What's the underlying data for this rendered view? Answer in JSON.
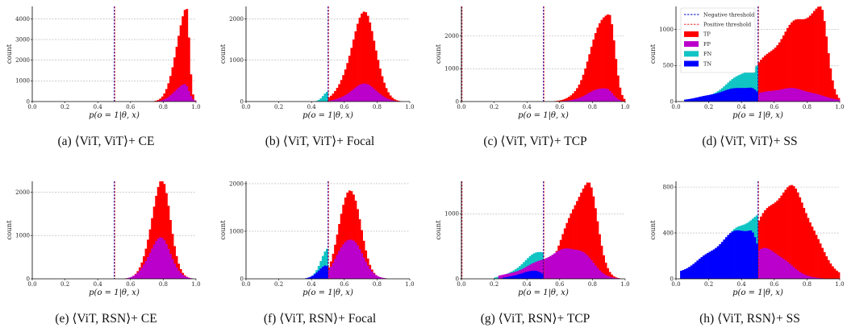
{
  "colors": {
    "TP": "#ff0000",
    "FP": "#bb00cc",
    "FN": "#11c4c4",
    "TN": "#0000ff",
    "neg_threshold": "#0000cc",
    "pos_threshold": "#e01010",
    "grid": "#b0b0b0"
  },
  "chart_data": [
    {
      "type": "histogram",
      "caption": "(a) ⟨ViT, ViT⟩+ CE",
      "xlabel": "p(o = 1|θ, x)",
      "ylabel": "count",
      "xlim": [
        0,
        1
      ],
      "ylim": [
        0,
        4600
      ],
      "yticks": [
        0,
        1000,
        2000,
        3000,
        4000
      ],
      "xticks": [
        "0.0",
        "0.2",
        "0.4",
        "0.6",
        "0.8",
        "1.0"
      ],
      "thresholds": [
        0.5
      ],
      "grid": true,
      "series": [
        {
          "class": "TP",
          "peak_x": 0.94,
          "peak": 4500,
          "width_left": 0.06,
          "width_right": 0.018,
          "start": 0.5
        },
        {
          "class": "FP",
          "peak_x": 0.93,
          "peak": 850,
          "width_left": 0.06,
          "width_right": 0.025,
          "start": 0.5
        }
      ]
    },
    {
      "type": "histogram",
      "caption": "(b) ⟨ViT, ViT⟩+ Focal",
      "xlabel": "p(o = 1|θ, x)",
      "ylabel": "count",
      "xlim": [
        0,
        1
      ],
      "ylim": [
        0,
        2300
      ],
      "yticks": [
        0,
        1000,
        2000
      ],
      "xticks": [
        "0.0",
        "0.2",
        "0.4",
        "0.6",
        "0.8",
        "1.0"
      ],
      "thresholds": [
        0.5
      ],
      "grid": true,
      "series": [
        {
          "class": "TP",
          "peak_x": 0.73,
          "peak": 2100,
          "width_left": 0.09,
          "width_right": 0.065,
          "start": 0.5
        },
        {
          "class": "FP",
          "peak_x": 0.73,
          "peak": 420,
          "width_left": 0.09,
          "width_right": 0.07,
          "start": 0.5
        },
        {
          "class": "FN",
          "peak_x": 0.5,
          "peak": 230,
          "width_left": 0.03,
          "width_right": 0.01,
          "start": 0.42,
          "end": 0.5
        }
      ]
    },
    {
      "type": "histogram",
      "caption": "(c) ⟨ViT, ViT⟩+ TCP",
      "xlabel": "p(o = 1|θ, x)",
      "ylabel": "count",
      "xlim": [
        0,
        1
      ],
      "ylim": [
        0,
        2900
      ],
      "yticks": [
        0,
        1000,
        2000
      ],
      "xticks": [
        "0.0",
        "0.2",
        "0.4",
        "0.6",
        "0.8",
        "1.0"
      ],
      "thresholds": [
        0.0,
        0.5
      ],
      "grid": true,
      "series": [
        {
          "class": "TP",
          "peak_x": 0.9,
          "peak": 2800,
          "width_left": 0.1,
          "width_right": 0.035,
          "start": 0.5
        },
        {
          "class": "FP",
          "peak_x": 0.88,
          "peak": 420,
          "width_left": 0.1,
          "width_right": 0.04,
          "start": 0.5
        }
      ]
    },
    {
      "type": "histogram",
      "caption": "(d) ⟨ViT, ViT⟩+ SS",
      "xlabel": "p(o = 1|θ, x)",
      "ylabel": "count",
      "xlim": [
        0,
        1
      ],
      "ylim": [
        0,
        1320
      ],
      "yticks": [
        0,
        500,
        1000
      ],
      "xticks": [
        "0.0",
        "0.2",
        "0.4",
        "0.6",
        "0.8",
        "1.0"
      ],
      "thresholds": [
        0.5
      ],
      "grid": true,
      "legend": {
        "placement": "top-left",
        "entries": [
          "Negative threshold",
          "Positive threshold",
          "TP",
          "FP",
          "FN",
          "TN"
        ]
      },
      "series": [
        {
          "class": "TP",
          "peak_x": 0.88,
          "peak": 1270,
          "width_left": 0.28,
          "width_right": 0.045,
          "start": 0.5
        },
        {
          "class": "FP",
          "peak_x": 0.7,
          "peak": 180,
          "width_left": 0.2,
          "width_right": 0.15,
          "start": 0.5
        },
        {
          "class": "FN",
          "peak_x": 0.5,
          "peak": 480,
          "width_left": 0.16,
          "width_right": 0.01,
          "start": 0.1,
          "end": 0.5
        },
        {
          "class": "TN",
          "peak_x": 0.45,
          "peak": 200,
          "width_left": 0.2,
          "width_right": 0.05,
          "start": 0.05,
          "end": 0.5
        }
      ]
    },
    {
      "type": "histogram",
      "caption": "(e) ⟨ViT, RSN⟩+ CE",
      "xlabel": "p(o = 1|θ, x)",
      "ylabel": "count",
      "xlim": [
        0,
        1
      ],
      "ylim": [
        0,
        2250
      ],
      "yticks": [
        0,
        1000,
        2000
      ],
      "xticks": [
        "0.0",
        "0.2",
        "0.4",
        "0.6",
        "0.8",
        "1.0"
      ],
      "thresholds": [
        0.5
      ],
      "grid": true,
      "series": [
        {
          "class": "TP",
          "peak_x": 0.79,
          "peak": 2180,
          "width_left": 0.065,
          "width_right": 0.055,
          "start": 0.5
        },
        {
          "class": "FP",
          "peak_x": 0.78,
          "peak": 920,
          "width_left": 0.07,
          "width_right": 0.065,
          "start": 0.5
        }
      ]
    },
    {
      "type": "histogram",
      "caption": "(f) ⟨ViT, RSN⟩+ Focal",
      "xlabel": "p(o = 1|θ, x)",
      "ylabel": "count",
      "xlim": [
        0,
        1
      ],
      "ylim": [
        0,
        2050
      ],
      "yticks": [
        0,
        1000,
        2000
      ],
      "xticks": [
        "0.0",
        "0.2",
        "0.4",
        "0.6",
        "0.8",
        "1.0"
      ],
      "thresholds": [
        0.5
      ],
      "grid": true,
      "series": [
        {
          "class": "TP",
          "peak_x": 0.63,
          "peak": 1940,
          "width_left": 0.06,
          "width_right": 0.065,
          "start": 0.5
        },
        {
          "class": "FP",
          "peak_x": 0.63,
          "peak": 860,
          "width_left": 0.07,
          "width_right": 0.075,
          "start": 0.5
        },
        {
          "class": "FN",
          "peak_x": 0.5,
          "peak": 620,
          "width_left": 0.045,
          "width_right": 0.01,
          "start": 0.35,
          "end": 0.5
        },
        {
          "class": "TN",
          "peak_x": 0.49,
          "peak": 280,
          "width_left": 0.05,
          "width_right": 0.01,
          "start": 0.35,
          "end": 0.5
        }
      ]
    },
    {
      "type": "histogram",
      "caption": "(g) ⟨ViT, RSN⟩+ TCP",
      "xlabel": "p(o = 1|θ, x)",
      "ylabel": "count",
      "xlim": [
        0,
        1
      ],
      "ylim": [
        0,
        1500
      ],
      "yticks": [
        0,
        1000
      ],
      "xticks": [
        "0.0",
        "0.2",
        "0.4",
        "0.6",
        "0.8",
        "1.0"
      ],
      "thresholds": [
        0.0,
        0.5
      ],
      "grid": true,
      "series": [
        {
          "class": "TP",
          "peak_x": 0.77,
          "peak": 1450,
          "width_left": 0.12,
          "width_right": 0.06,
          "start": 0.5
        },
        {
          "class": "FP",
          "peak_x": 0.7,
          "peak": 470,
          "width_left": 0.22,
          "width_right": 0.09,
          "start": 0.22
        },
        {
          "class": "FN",
          "peak_x": 0.5,
          "peak": 420,
          "width_left": 0.12,
          "width_right": 0.01,
          "start": 0.2,
          "end": 0.5
        },
        {
          "class": "TN",
          "peak_x": 0.45,
          "peak": 120,
          "width_left": 0.1,
          "width_right": 0.05,
          "start": 0.25,
          "end": 0.5
        }
      ]
    },
    {
      "type": "histogram",
      "caption": "(h) ⟨ViT, RSN⟩+ SS",
      "xlabel": "p(o = 1|θ, x)",
      "ylabel": "count",
      "xlim": [
        0,
        1
      ],
      "ylim": [
        0,
        850
      ],
      "yticks": [
        0,
        400,
        800
      ],
      "xticks": [
        "0.0",
        "0.2",
        "0.4",
        "0.6",
        "0.8",
        "1.0"
      ],
      "thresholds": [
        0.5
      ],
      "grid": true,
      "series": [
        {
          "class": "TP",
          "peak_x": 0.7,
          "peak": 780,
          "width_left": 0.2,
          "width_right": 0.13,
          "start": 0.5
        },
        {
          "class": "FP",
          "peak_x": 0.55,
          "peak": 260,
          "width_left": 0.1,
          "width_right": 0.12,
          "start": 0.5
        },
        {
          "class": "FN",
          "peak_x": 0.5,
          "peak": 540,
          "width_left": 0.2,
          "width_right": 0.01,
          "start": 0.1,
          "end": 0.5
        },
        {
          "class": "TN",
          "peak_x": 0.45,
          "peak": 440,
          "width_left": 0.22,
          "width_right": 0.05,
          "start": 0.02,
          "end": 0.5
        }
      ]
    }
  ]
}
